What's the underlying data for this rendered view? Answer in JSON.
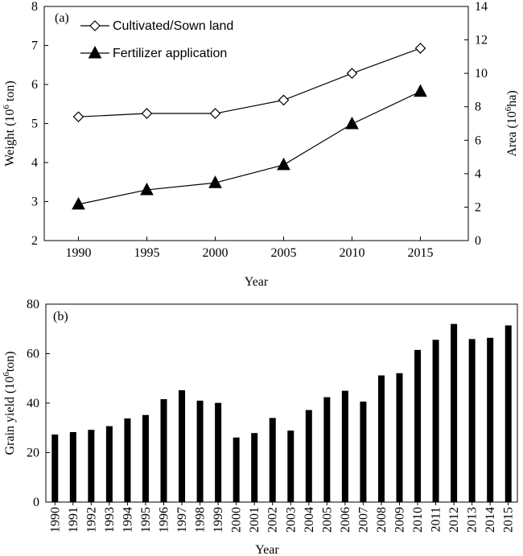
{
  "chart_data": [
    {
      "type": "line",
      "panel_label": "(a)",
      "x": [
        1990,
        1995,
        2000,
        2005,
        2010,
        2015
      ],
      "xlabel": "Year",
      "ylabel_left": {
        "main": "Weight (10",
        "sup": "6",
        "rest": " ton)"
      },
      "ylabel_right": {
        "main": "Area (10",
        "sup": "6",
        "rest": "ha)"
      },
      "ylim_left": [
        2,
        8
      ],
      "yticks_left": [
        2,
        3,
        4,
        5,
        6,
        7,
        8
      ],
      "ylim_right": [
        0,
        14
      ],
      "yticks_right": [
        0,
        2,
        4,
        6,
        8,
        10,
        12,
        14
      ],
      "grid": false,
      "legend_position": "top-left",
      "series": [
        {
          "name": "Cultivated/Sown land",
          "marker": "diamond-open",
          "axis": "right",
          "values": [
            7.4,
            7.6,
            7.6,
            8.4,
            10.0,
            11.5
          ]
        },
        {
          "name": "Fertilizer application",
          "marker": "triangle-filled",
          "axis": "left",
          "values": [
            2.93,
            3.3,
            3.48,
            3.94,
            4.99,
            5.82
          ]
        }
      ],
      "colors": {
        "line": "#000000"
      }
    },
    {
      "type": "bar",
      "panel_label": "(b)",
      "categories": [
        "1990",
        "1991",
        "1992",
        "1993",
        "1994",
        "1995",
        "1996",
        "1997",
        "1998",
        "1999",
        "2000",
        "2001",
        "2002",
        "2003",
        "2004",
        "2005",
        "2006",
        "2007",
        "2008",
        "2009",
        "2010",
        "2011",
        "2012",
        "2013",
        "2014",
        "2015"
      ],
      "values": [
        27.3,
        28.3,
        29.2,
        30.7,
        33.8,
        35.2,
        41.6,
        45.2,
        41.0,
        40.1,
        26.1,
        27.9,
        34.0,
        28.9,
        37.2,
        42.4,
        45.0,
        40.6,
        51.2,
        52.1,
        61.5,
        65.6,
        72.0,
        65.9,
        66.4,
        71.4
      ],
      "xlabel": "Year",
      "ylabel": {
        "main": "Grain yield (10",
        "sup": "6",
        "rest": "ton)"
      },
      "ylim": [
        0,
        80
      ],
      "yticks": [
        0,
        20,
        40,
        60,
        80
      ],
      "grid": false,
      "colors": {
        "bar": "#000000"
      }
    }
  ]
}
